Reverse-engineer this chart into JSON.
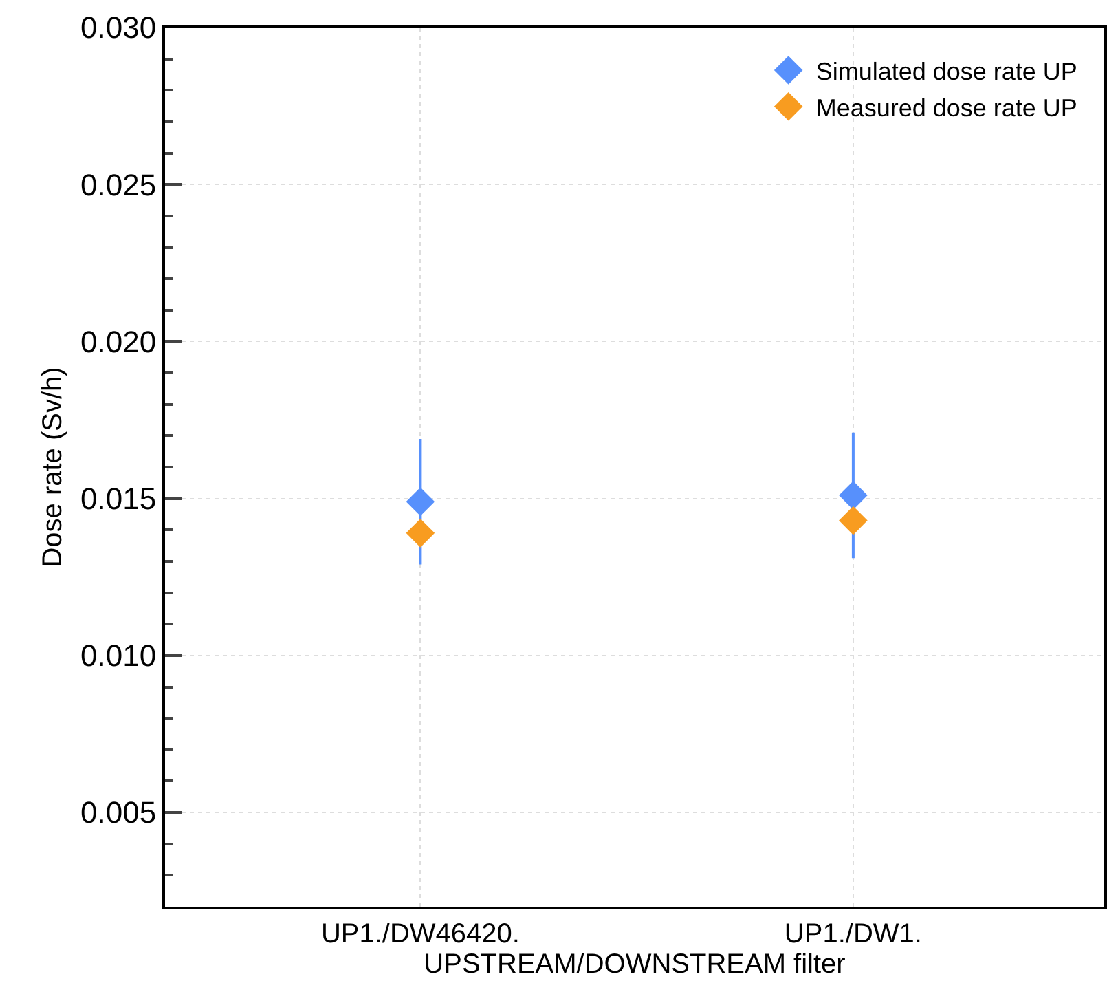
{
  "chart_data": {
    "type": "scatter",
    "xlabel": "UPSTREAM/DOWNSTREAM filter",
    "ylabel": "Dose rate (Sv/h)",
    "categories": [
      "UP1./DW46420.",
      "UP1./DW1."
    ],
    "series": [
      {
        "name": "Simulated dose rate UP",
        "color": "#5790fc",
        "values": [
          0.0149,
          0.0151
        ],
        "errors": [
          [
            0.0129,
            0.0169
          ],
          [
            0.0131,
            0.0171
          ]
        ]
      },
      {
        "name": "Measured dose rate UP",
        "color": "#f89c20",
        "values": [
          0.0139,
          0.0143
        ]
      }
    ],
    "ylim": [
      0.002,
      0.03
    ],
    "yticks": [
      0.005,
      {
        "value": 0.01,
        "label": "0.010"
      },
      0.015,
      {
        "value": 0.02,
        "label": "0.020"
      },
      0.025,
      {
        "value": 0.03,
        "label": "0.030"
      }
    ],
    "grid": true,
    "legend": "top right",
    "marker": "diamond"
  }
}
